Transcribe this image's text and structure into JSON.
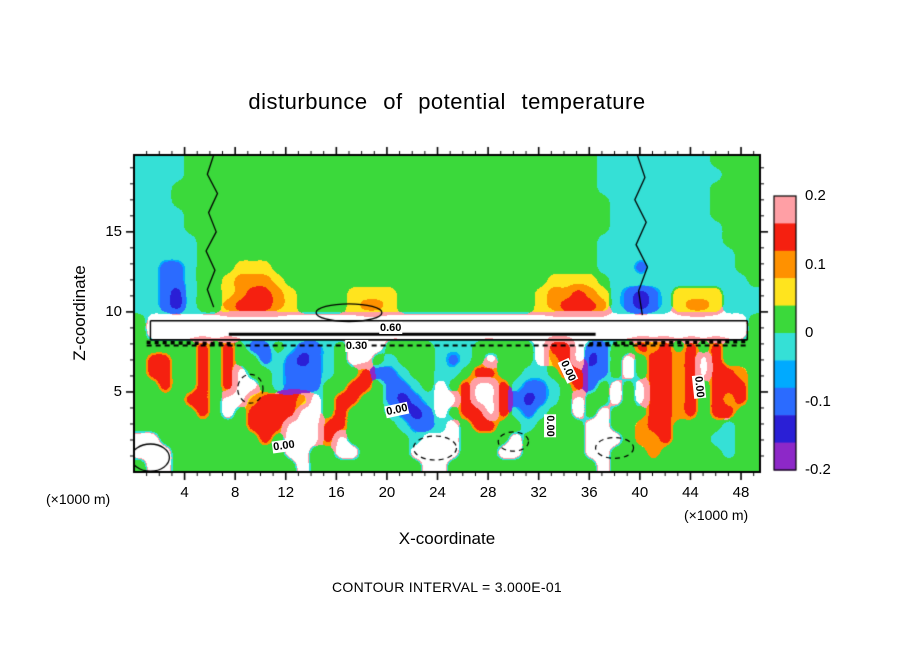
{
  "title": "disturbunce of potential temperature",
  "axes": {
    "xlabel": "X-coordinate",
    "ylabel": "Z-coordinate",
    "unit_left": "(×1000 m)",
    "unit_right": "(×1000 m)",
    "x_ticks": [
      4,
      8,
      12,
      16,
      20,
      24,
      28,
      32,
      36,
      40,
      44,
      48
    ],
    "y_ticks": [
      5,
      10,
      15
    ],
    "xlim": [
      0,
      49.5
    ],
    "ylim": [
      0,
      19.8
    ]
  },
  "caption": "CONTOUR INTERVAL = 3.000E-01",
  "colorbar": {
    "labels": [
      "0.2",
      "0.1",
      "0",
      "-0.1",
      "-0.2"
    ],
    "segments_top_to_bottom": [
      {
        "color": "#ff9fa5",
        "from": 0.16,
        "to": 0.2
      },
      {
        "color": "#f52010",
        "from": 0.12,
        "to": 0.16
      },
      {
        "color": "#ff9100",
        "from": 0.08,
        "to": 0.12
      },
      {
        "color": "#ffe41e",
        "from": 0.04,
        "to": 0.08
      },
      {
        "color": "#3bd93b",
        "from": 0.0,
        "to": 0.04
      },
      {
        "color": "#35e0d6",
        "from": -0.04,
        "to": 0.0
      },
      {
        "color": "#00aaff",
        "from": -0.08,
        "to": -0.04
      },
      {
        "color": "#2b6bff",
        "from": -0.12,
        "to": -0.08
      },
      {
        "color": "#2a1fd6",
        "from": -0.16,
        "to": -0.12
      },
      {
        "color": "#8d28c8",
        "from": -0.2,
        "to": -0.16
      }
    ]
  },
  "chart_data": {
    "type": "heatmap",
    "title": "disturbunce of potential temperature",
    "x_range": [
      0,
      49.5
    ],
    "z_range": [
      0,
      19.8
    ],
    "units": "×1000 m",
    "contour_interval": "3.000E-01",
    "palette": {
      "G": {
        "color": "#3bd93b",
        "value": 0.02
      },
      "C": {
        "color": "#35e0d6",
        "value": -0.02
      },
      "L": {
        "color": "#00aaff",
        "value": -0.06
      },
      "B": {
        "color": "#2b6bff",
        "value": -0.1
      },
      "D": {
        "color": "#2a1fd6",
        "value": -0.14
      },
      "P": {
        "color": "#8d28c8",
        "value": -0.18
      },
      "Y": {
        "color": "#ffe41e",
        "value": 0.06
      },
      "O": {
        "color": "#ff9100",
        "value": 0.1
      },
      "R": {
        "color": "#f52010",
        "value": 0.14
      },
      "K": {
        "color": "#ff9fa5",
        "value": 0.18
      },
      "W": {
        "color": "#ffffff",
        "value": null
      }
    },
    "grid_rows_top_to_bottom": [
      "CCCCGGGGGGGGGGGGGGGGGGGGGGGGGGGGGGGGGCCCCCCCCCGGGG",
      "CCCCGGGGGGGGGGGGGGGGGGGGGGGGGGGGGGGGGCCCCCCCCCCGGG",
      "CCCGGGGGGGGGGGGGGGGGGGGGGGGGGGGGGGGGGCCCCCCCCCGGGG",
      "CCCGGGGGGGGGGGGGGGGGGGGGGGGGGGGGGGGGGGCCCCCCCCGGGG",
      "CCCCGGGGGGGGGGGGGGGGGGGGGGGGGGGGGGGGGGCCCCCCCCGGGG",
      "CCCCGGGGGGGGGGGGGGGGGGGGGGGGGGGGGGGGGGCCCCCCCCCGGG",
      "CCCCCGGGGGGGGGGGGGGGGGGGGGGGGGGGGGGGGCCCCCCCCCCGGG",
      "CCCCCGGGGGGGGGGGGGGGGGGGGGGGGGGGGGGGGCCCCCCCCCCCGG",
      "CCBBCGGGYYYGGGGGGGGGGGGGGGGGGGGGGGGGGCCCBCCCCCCCGG",
      "CCBBCGGYOOOYGGGGGGGGGGGGGGGGGGGGGYYYYGCCCCCCCCCCCG",
      "CCBDCGGYORROYGGGGYYYYGGGGGGGGGGGYOOROYCBDBCYYYYCCC",
      "CCBDCGGORRROYGGGGYOOYGGGGGGGGGGGYORRROCBDBCYOOYCCC",
      "GWWWWWWWWWWWWWWWWWWWWWWWWWWWWWWWWWWWWWWWWWWWWWWWWG",
      "GWWWWWWWWWWWWWWWWWWWWWWWWWWWWWWWWWWWWWWWWWWWWWWWWG",
      "GGGGGRGRGBBGCBBCGWWWGGGGCCCGGGGGWRRWBBGGRORGRGRGGG",
      "GRRGGRGRGGBCBDBCGWWGCGGGCBCGWGGGWORWDBGWGRRORWRGGG",
      "GRRGGRGRWGGCBBBCGGRBBCGGCCGRRGGCCGRRBBGWGRRORWRROG",
      "GGRGGRGRWWGCBBBGGRRGBBCGWGRWWRCBBCGRBGWGWRRORGRRRG",
      "GGGGRRGWWORRROWGRRGGBDBCWWRWWRBDBCGWGGWGWRRORGRORG",
      "GGGGGRGWGRRRRWWGRGGGCBDBWGRRWRCBCGGWGWGGGRRORGRRGG",
      "GGGGGGGGGRRRWWWRRGGGGCBBCWGRRGGCGGGGWWGGORRGGGGCGG",
      "WWGGGGGGGGRGWWWRWGGGGGCWWWGGGGWGGGGGWWWGOORGGGCCGG",
      "WWWGGGGGGGGGWWGGWWGGGGWWWWGGGWWGGGGGWWGGGOGGGGGCGG",
      "GWWGGGGGGGGGGWGGGGGGGGGWWGGGGGGGGGGGGWGGGGGGGGGGGG"
    ],
    "contours": [
      {
        "type": "line",
        "style": "solid",
        "width": 1.6,
        "points": [
          [
            1.3,
            9.45
          ],
          [
            48.5,
            9.45
          ]
        ]
      },
      {
        "type": "line",
        "style": "solid",
        "width": 1.6,
        "points": [
          [
            1.3,
            8.25
          ],
          [
            48.5,
            8.25
          ]
        ]
      },
      {
        "type": "line",
        "style": "solid",
        "width": 1.4,
        "points": [
          [
            1.3,
            9.45
          ],
          [
            1.3,
            8.25
          ]
        ]
      },
      {
        "type": "line",
        "style": "solid",
        "width": 1.4,
        "points": [
          [
            48.5,
            9.45
          ],
          [
            48.5,
            8.25
          ]
        ]
      },
      {
        "type": "line",
        "style": "solid",
        "width": 3,
        "points": [
          [
            7.5,
            8.6
          ],
          [
            36.5,
            8.6
          ]
        ]
      },
      {
        "type": "line",
        "style": "dash",
        "width": 1.8,
        "points": [
          [
            1.0,
            7.9
          ],
          [
            48.5,
            7.9
          ]
        ]
      },
      {
        "type": "line",
        "style": "dash",
        "width": 3.5,
        "points": [
          [
            1.0,
            8.1
          ],
          [
            8.0,
            8.0
          ]
        ]
      },
      {
        "type": "line",
        "style": "dash",
        "width": 3.5,
        "points": [
          [
            36.0,
            8.0
          ],
          [
            48.5,
            8.15
          ]
        ]
      },
      {
        "type": "line",
        "style": "solid",
        "width": 1.3,
        "points": [
          [
            6.3,
            19.8
          ],
          [
            5.8,
            18.6
          ],
          [
            6.6,
            17.4
          ],
          [
            5.9,
            16.2
          ],
          [
            6.5,
            15.0
          ],
          [
            5.7,
            13.8
          ],
          [
            6.4,
            12.6
          ],
          [
            5.8,
            11.4
          ],
          [
            6.3,
            10.3
          ]
        ]
      },
      {
        "type": "line",
        "style": "solid",
        "width": 1.3,
        "points": [
          [
            39.8,
            19.8
          ],
          [
            40.4,
            18.4
          ],
          [
            39.6,
            17.0
          ],
          [
            40.5,
            15.6
          ],
          [
            39.7,
            14.2
          ],
          [
            40.6,
            12.8
          ],
          [
            39.9,
            11.3
          ],
          [
            40.2,
            9.8
          ]
        ]
      },
      {
        "type": "ellipse",
        "style": "solid",
        "width": 1.3,
        "cx": 17.0,
        "cz": 9.95,
        "rx": 2.6,
        "rz": 0.55
      },
      {
        "type": "ellipse",
        "style": "dash",
        "width": 1.2,
        "cx": 23.8,
        "cz": 1.5,
        "rx": 1.7,
        "rz": 0.75
      },
      {
        "type": "ellipse",
        "style": "dash",
        "width": 1.2,
        "cx": 38.0,
        "cz": 1.5,
        "rx": 1.5,
        "rz": 0.65
      },
      {
        "type": "ellipse",
        "style": "dash",
        "width": 1.2,
        "cx": 30.0,
        "cz": 1.9,
        "rx": 1.2,
        "rz": 0.6
      },
      {
        "type": "ellipse",
        "style": "dash",
        "width": 1.2,
        "cx": 9.2,
        "cz": 5.2,
        "rx": 1.0,
        "rz": 0.9
      },
      {
        "type": "ellipse",
        "style": "solid",
        "width": 1.3,
        "cx": 1.3,
        "cz": 0.9,
        "rx": 1.5,
        "rz": 0.85
      }
    ],
    "contour_labels": [
      {
        "text": "0.60",
        "x": 20.3,
        "z": 9.0,
        "rot": 0
      },
      {
        "text": "0.30",
        "x": 17.6,
        "z": 7.9,
        "rot": 0
      },
      {
        "text": "0.00",
        "x": 11.9,
        "z": 1.6,
        "rot": -8
      },
      {
        "text": "0.00",
        "x": 20.8,
        "z": 3.9,
        "rot": -12
      },
      {
        "text": "0.00",
        "x": 32.9,
        "z": 2.9,
        "rot": 90
      },
      {
        "text": "0.00",
        "x": 44.7,
        "z": 5.3,
        "rot": 84
      },
      {
        "text": "0.00",
        "x": 34.3,
        "z": 6.3,
        "rot": 65
      }
    ]
  }
}
